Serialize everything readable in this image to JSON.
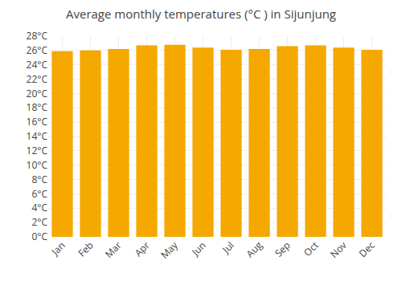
{
  "chart_data": {
    "type": "bar",
    "title": "Average monthly temperatures (°C ) in Sijunjung",
    "categories": [
      "Jan",
      "Feb",
      "Mar",
      "Apr",
      "May",
      "Jun",
      "Jul",
      "Aug",
      "Sep",
      "Oct",
      "Nov",
      "Dec"
    ],
    "values": [
      25.9,
      26.0,
      26.2,
      26.7,
      26.8,
      26.4,
      26.1,
      26.2,
      26.6,
      26.7,
      26.4,
      26.1
    ],
    "color": "#F5A800",
    "ylim": [
      0,
      28
    ],
    "yticks": [
      {
        "value": 0,
        "label": "0°C"
      },
      {
        "value": 2,
        "label": "2°C"
      },
      {
        "value": 4,
        "label": "4°C"
      },
      {
        "value": 6,
        "label": "6°C"
      },
      {
        "value": 8,
        "label": "8°C"
      },
      {
        "value": 10,
        "label": "10°C"
      },
      {
        "value": 12,
        "label": "12°C"
      },
      {
        "value": 14,
        "label": "14°C"
      },
      {
        "value": 16,
        "label": "16°C"
      },
      {
        "value": 18,
        "label": "18°C"
      },
      {
        "value": 20,
        "label": "20°C"
      },
      {
        "value": 22,
        "label": "22°C"
      },
      {
        "value": 24,
        "label": "24°C"
      },
      {
        "value": 26,
        "label": "26°C"
      },
      {
        "value": 28,
        "label": "28°C"
      }
    ],
    "grid": true
  }
}
